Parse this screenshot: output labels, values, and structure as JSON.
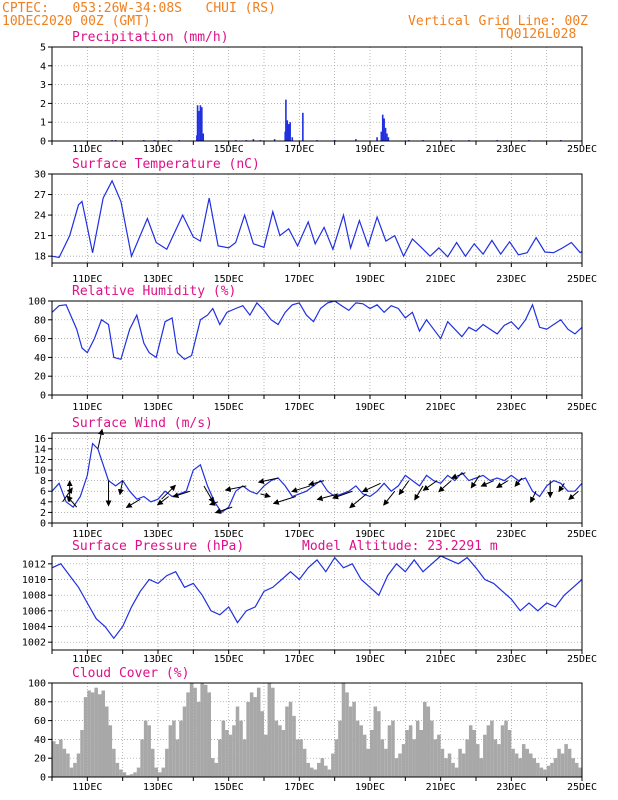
{
  "header": {
    "line1": "CPTEC:   053:26W-34:08S   CHUI (RS)",
    "line2": "10DEC2020 00Z (GMT)",
    "right1": "Vertical Grid Line: 00Z",
    "right2": "TQ0126L028"
  },
  "colors": {
    "header": "#f08020",
    "title": "#e0108a",
    "line": "#2030e0",
    "cloud": "#a8a8a8",
    "grid": "#9a9a9a",
    "arrow": "#000000"
  },
  "chart_data": [
    {
      "id": "precip",
      "type": "bar",
      "title": "Precipitation (mm/h)",
      "categories": [
        "11DEC",
        "13DEC",
        "15DEC",
        "17DEC",
        "19DEC",
        "21DEC",
        "23DEC",
        "25DEC"
      ],
      "xlim": [
        10,
        25
      ],
      "ylim": [
        0,
        5
      ],
      "yticks": [
        "0",
        "1",
        "2",
        "3",
        "4",
        "5"
      ],
      "ytick_values": [
        0,
        1,
        2,
        3,
        4,
        5
      ],
      "x": [
        11.7,
        11.8,
        12.6,
        12.9,
        13.3,
        13.6,
        14.1,
        14.12,
        14.16,
        14.2,
        14.24,
        14.28,
        15.2,
        15.5,
        15.7,
        15.9,
        16.3,
        16.6,
        16.62,
        16.66,
        16.7,
        16.74,
        16.8,
        17.1,
        17.5,
        18.0,
        18.6,
        19.2,
        19.32,
        19.36,
        19.4,
        19.44,
        19.48,
        19.52,
        20.1,
        20.5,
        21.3,
        21.8,
        22.6,
        23.5,
        24.4
      ],
      "values": [
        0.05,
        0.05,
        0.05,
        0.05,
        0.05,
        0.05,
        0.3,
        1.9,
        1.6,
        1.9,
        1.8,
        0.4,
        0.05,
        0.05,
        0.1,
        0.05,
        0.1,
        0.5,
        2.2,
        1.1,
        0.9,
        1.0,
        0.2,
        1.5,
        0.05,
        0.05,
        0.1,
        0.2,
        0.5,
        1.4,
        1.2,
        0.7,
        0.4,
        0.2,
        0.05,
        0.05,
        0.05,
        0.05,
        0.05,
        0.05,
        0.05
      ]
    },
    {
      "id": "temp",
      "type": "line",
      "title": "Surface Temperature (nC)",
      "categories": [
        "11DEC",
        "13DEC",
        "15DEC",
        "17DEC",
        "19DEC",
        "21DEC",
        "23DEC",
        "25DEC"
      ],
      "xlim": [
        10,
        25
      ],
      "ylim": [
        17,
        30
      ],
      "yticks": [
        "18",
        "21",
        "24",
        "27",
        "30"
      ],
      "ytick_values": [
        18,
        21,
        24,
        27,
        30
      ],
      "x": [
        10.0,
        10.2,
        10.5,
        10.75,
        10.85,
        11.15,
        11.45,
        11.7,
        11.95,
        12.25,
        12.7,
        12.95,
        13.25,
        13.7,
        14.0,
        14.2,
        14.45,
        14.7,
        15.0,
        15.2,
        15.45,
        15.7,
        16.0,
        16.25,
        16.45,
        16.7,
        16.95,
        17.25,
        17.45,
        17.7,
        17.95,
        18.25,
        18.45,
        18.7,
        18.95,
        19.2,
        19.45,
        19.7,
        19.95,
        20.2,
        20.45,
        20.7,
        20.95,
        21.2,
        21.45,
        21.7,
        21.95,
        22.2,
        22.45,
        22.7,
        22.95,
        23.2,
        23.45,
        23.7,
        23.95,
        24.2,
        24.45,
        24.7,
        24.95,
        25.0
      ],
      "values": [
        18.0,
        17.8,
        21.0,
        25.5,
        26.0,
        18.5,
        26.5,
        29.0,
        26.0,
        18.0,
        23.5,
        20.0,
        19.0,
        24.0,
        20.8,
        20.2,
        26.5,
        19.5,
        19.2,
        20.0,
        24.0,
        19.8,
        19.3,
        24.5,
        21.0,
        22.0,
        19.5,
        23.0,
        19.8,
        22.2,
        19.0,
        24.0,
        19.2,
        23.2,
        19.5,
        23.7,
        20.2,
        21.0,
        18.0,
        20.5,
        19.3,
        18.0,
        19.2,
        17.9,
        20.0,
        18.0,
        19.8,
        18.3,
        20.3,
        18.3,
        20.1,
        18.2,
        18.5,
        20.7,
        18.6,
        18.5,
        19.2,
        20.0,
        18.5,
        18.7
      ]
    },
    {
      "id": "rh",
      "type": "line",
      "title": "Relative Humidity (%)",
      "categories": [
        "11DEC",
        "13DEC",
        "15DEC",
        "17DEC",
        "19DEC",
        "21DEC",
        "23DEC",
        "25DEC"
      ],
      "xlim": [
        10,
        25
      ],
      "ylim": [
        0,
        100
      ],
      "yticks": [
        "0",
        "20",
        "40",
        "60",
        "80",
        "100"
      ],
      "ytick_values": [
        0,
        20,
        40,
        60,
        80,
        100
      ],
      "x": [
        10.0,
        10.2,
        10.4,
        10.7,
        10.85,
        11.0,
        11.2,
        11.4,
        11.6,
        11.75,
        11.95,
        12.2,
        12.4,
        12.6,
        12.75,
        12.95,
        13.2,
        13.4,
        13.55,
        13.75,
        13.95,
        14.2,
        14.4,
        14.55,
        14.75,
        14.95,
        15.2,
        15.4,
        15.6,
        15.8,
        16.0,
        16.2,
        16.4,
        16.6,
        16.8,
        17.0,
        17.2,
        17.4,
        17.6,
        17.8,
        18.0,
        18.2,
        18.4,
        18.6,
        18.8,
        19.0,
        19.2,
        19.4,
        19.6,
        19.8,
        20.0,
        20.2,
        20.4,
        20.6,
        20.8,
        21.0,
        21.2,
        21.4,
        21.6,
        21.8,
        22.0,
        22.2,
        22.4,
        22.6,
        22.8,
        23.0,
        23.2,
        23.4,
        23.6,
        23.8,
        24.0,
        24.2,
        24.4,
        24.6,
        24.8,
        25.0
      ],
      "values": [
        88,
        95,
        96,
        70,
        50,
        45,
        60,
        80,
        75,
        40,
        38,
        70,
        85,
        55,
        45,
        40,
        78,
        82,
        45,
        38,
        42,
        80,
        85,
        92,
        75,
        88,
        92,
        95,
        85,
        98,
        90,
        80,
        75,
        88,
        96,
        98,
        85,
        78,
        92,
        98,
        100,
        95,
        90,
        98,
        97,
        92,
        96,
        88,
        95,
        92,
        82,
        88,
        68,
        80,
        70,
        60,
        78,
        70,
        62,
        72,
        68,
        75,
        70,
        65,
        74,
        78,
        70,
        80,
        96,
        72,
        70,
        75,
        80,
        70,
        65,
        72
      ]
    },
    {
      "id": "wind",
      "type": "line",
      "title": "Surface Wind (m/s)",
      "categories": [
        "11DEC",
        "13DEC",
        "15DEC",
        "17DEC",
        "19DEC",
        "21DEC",
        "23DEC",
        "25DEC"
      ],
      "xlim": [
        10,
        25
      ],
      "ylim": [
        0,
        17
      ],
      "yticks": [
        "0",
        "2",
        "4",
        "6",
        "8",
        "10",
        "12",
        "14",
        "16"
      ],
      "ytick_values": [
        0,
        2,
        4,
        6,
        8,
        10,
        12,
        14,
        16
      ],
      "x": [
        10.0,
        10.2,
        10.4,
        10.6,
        10.8,
        11.0,
        11.15,
        11.3,
        11.45,
        11.6,
        11.8,
        12.0,
        12.2,
        12.4,
        12.6,
        12.8,
        13.0,
        13.2,
        13.4,
        13.6,
        13.8,
        14.0,
        14.2,
        14.4,
        14.6,
        14.8,
        15.0,
        15.2,
        15.4,
        15.6,
        15.8,
        16.0,
        16.2,
        16.4,
        16.6,
        16.8,
        17.0,
        17.2,
        17.4,
        17.6,
        17.8,
        18.0,
        18.2,
        18.4,
        18.6,
        18.8,
        19.0,
        19.2,
        19.4,
        19.6,
        19.8,
        20.0,
        20.2,
        20.4,
        20.6,
        20.8,
        21.0,
        21.2,
        21.4,
        21.6,
        21.8,
        22.0,
        22.2,
        22.4,
        22.6,
        22.8,
        23.0,
        23.2,
        23.4,
        23.6,
        23.8,
        24.0,
        24.2,
        24.4,
        24.6,
        24.8,
        25.0
      ],
      "values": [
        6,
        7.5,
        4,
        3,
        5,
        9,
        15,
        14,
        11,
        8,
        7,
        8,
        6,
        4.5,
        5,
        4,
        4.5,
        6,
        5,
        5.5,
        6,
        10,
        11,
        7,
        4,
        2,
        3,
        6,
        7,
        6,
        5.5,
        7,
        8,
        8.5,
        7,
        5,
        5.5,
        6,
        7,
        8,
        6,
        5,
        5.5,
        6,
        7,
        5.5,
        5,
        6,
        7.5,
        6,
        7,
        9,
        8,
        7,
        9,
        8,
        7.5,
        9,
        8,
        9.5,
        8,
        8.5,
        9,
        8,
        8.5,
        8,
        9,
        8,
        8.5,
        6,
        5,
        7,
        8,
        7.5,
        6,
        6,
        7.5
      ],
      "vectors": {
        "x": [
          10.3,
          10.5,
          10.7,
          11.3,
          11.6,
          12.0,
          12.5,
          13.1,
          13.3,
          13.9,
          14.3,
          14.7,
          15.1,
          15.5,
          15.9,
          16.4,
          16.9,
          17.3,
          17.7,
          18.1,
          18.5,
          18.9,
          19.3,
          19.7,
          20.1,
          20.5,
          20.9,
          21.3,
          21.7,
          22.1,
          22.5,
          22.9,
          23.3,
          23.7,
          24.1,
          24.5,
          24.9
        ],
        "u": [
          0.7,
          0.0,
          -0.7,
          0.3,
          0.0,
          -0.2,
          -1.0,
          1.0,
          -0.8,
          -1.2,
          0.7,
          -0.6,
          -1.2,
          -1.5,
          0.7,
          -1.4,
          -1.6,
          -1.3,
          -1.1,
          -1.5,
          -1.4,
          -1.2,
          -1.3,
          -0.8,
          -0.7,
          -0.6,
          -1.0,
          -0.9,
          -1.0,
          -0.6,
          -0.9,
          -0.8,
          -0.5,
          -0.4,
          0.0,
          -0.4,
          -0.7
        ],
        "v": [
          1.0,
          1.5,
          0.8,
          1.4,
          -1.8,
          -1.0,
          -0.6,
          1.0,
          -0.6,
          -0.4,
          -1.2,
          -0.2,
          -0.4,
          -0.3,
          -0.2,
          -0.3,
          -0.5,
          -0.4,
          -0.3,
          -0.4,
          -0.5,
          -1.0,
          -0.6,
          -1.0,
          -1.0,
          -1.0,
          -0.7,
          -0.8,
          -0.4,
          -0.9,
          -0.4,
          -0.5,
          -0.6,
          -0.8,
          -1.2,
          -0.6,
          -0.6
        ]
      }
    },
    {
      "id": "pres",
      "type": "line",
      "title": "Surface Pressure (hPa)",
      "annotation": "Model Altitude: 23.2291 m",
      "categories": [
        "11DEC",
        "13DEC",
        "15DEC",
        "17DEC",
        "19DEC",
        "21DEC",
        "23DEC",
        "25DEC"
      ],
      "xlim": [
        10,
        25
      ],
      "ylim": [
        1001,
        1013
      ],
      "yticks": [
        "1002",
        "1004",
        "1006",
        "1008",
        "1010",
        "1012"
      ],
      "ytick_values": [
        1002,
        1004,
        1006,
        1008,
        1010,
        1012
      ],
      "x": [
        10.0,
        10.25,
        10.5,
        10.75,
        11.0,
        11.25,
        11.5,
        11.75,
        12.0,
        12.25,
        12.5,
        12.75,
        13.0,
        13.25,
        13.5,
        13.75,
        14.0,
        14.25,
        14.5,
        14.75,
        15.0,
        15.25,
        15.5,
        15.75,
        16.0,
        16.25,
        16.5,
        16.75,
        17.0,
        17.25,
        17.5,
        17.75,
        18.0,
        18.25,
        18.5,
        18.75,
        19.0,
        19.25,
        19.5,
        19.75,
        20.0,
        20.25,
        20.5,
        20.75,
        21.0,
        21.25,
        21.5,
        21.75,
        22.0,
        22.25,
        22.5,
        22.75,
        23.0,
        23.25,
        23.5,
        23.75,
        24.0,
        24.25,
        24.5,
        24.75,
        25.0
      ],
      "values": [
        1011.5,
        1012.0,
        1010.5,
        1009.0,
        1007.0,
        1005.0,
        1004.0,
        1002.5,
        1004.0,
        1006.5,
        1008.5,
        1010.0,
        1009.5,
        1010.5,
        1011.0,
        1009.0,
        1009.5,
        1008.0,
        1006.0,
        1005.5,
        1006.5,
        1004.5,
        1006.0,
        1006.5,
        1008.5,
        1009.0,
        1010.0,
        1011.0,
        1010.0,
        1011.5,
        1012.5,
        1011.0,
        1012.8,
        1011.5,
        1012.0,
        1010.0,
        1009.0,
        1008.0,
        1010.5,
        1012.0,
        1011.0,
        1012.5,
        1011.0,
        1012.0,
        1013.0,
        1012.5,
        1012.0,
        1012.8,
        1011.5,
        1010.0,
        1009.5,
        1008.5,
        1007.5,
        1006.0,
        1007.0,
        1006.0,
        1007.0,
        1006.5,
        1008.0,
        1009.0,
        1010.0
      ]
    },
    {
      "id": "cloud",
      "type": "bar",
      "title": "Cloud Cover (%)",
      "categories": [
        "11DEC",
        "13DEC",
        "15DEC",
        "17DEC",
        "19DEC",
        "21DEC",
        "23DEC",
        "25DEC"
      ],
      "xlim": [
        10,
        25
      ],
      "ylim": [
        0,
        100
      ],
      "yticks": [
        "0",
        "20",
        "40",
        "60",
        "80",
        "100"
      ],
      "ytick_values": [
        0,
        20,
        40,
        60,
        80,
        100
      ],
      "x": [
        10.05,
        10.15,
        10.25,
        10.35,
        10.45,
        10.55,
        10.65,
        10.75,
        10.85,
        10.95,
        11.05,
        11.15,
        11.25,
        11.35,
        11.45,
        11.55,
        11.65,
        11.75,
        11.85,
        11.95,
        12.05,
        12.15,
        12.25,
        12.35,
        12.45,
        12.55,
        12.65,
        12.75,
        12.85,
        12.95,
        13.05,
        13.15,
        13.25,
        13.35,
        13.45,
        13.55,
        13.65,
        13.75,
        13.85,
        13.95,
        14.05,
        14.15,
        14.25,
        14.35,
        14.45,
        14.55,
        14.65,
        14.75,
        14.85,
        14.95,
        15.05,
        15.15,
        15.25,
        15.35,
        15.45,
        15.55,
        15.65,
        15.75,
        15.85,
        15.95,
        16.05,
        16.15,
        16.25,
        16.35,
        16.45,
        16.55,
        16.65,
        16.75,
        16.85,
        16.95,
        17.05,
        17.15,
        17.25,
        17.35,
        17.45,
        17.55,
        17.65,
        17.75,
        17.85,
        17.95,
        18.05,
        18.15,
        18.25,
        18.35,
        18.45,
        18.55,
        18.65,
        18.75,
        18.85,
        18.95,
        19.05,
        19.15,
        19.25,
        19.35,
        19.45,
        19.55,
        19.65,
        19.75,
        19.85,
        19.95,
        20.05,
        20.15,
        20.25,
        20.35,
        20.45,
        20.55,
        20.65,
        20.75,
        20.85,
        20.95,
        21.05,
        21.15,
        21.25,
        21.35,
        21.45,
        21.55,
        21.65,
        21.75,
        21.85,
        21.95,
        22.05,
        22.15,
        22.25,
        22.35,
        22.45,
        22.55,
        22.65,
        22.75,
        22.85,
        22.95,
        23.05,
        23.15,
        23.25,
        23.35,
        23.45,
        23.55,
        23.65,
        23.75,
        23.85,
        23.95,
        24.05,
        24.15,
        24.25,
        24.35,
        24.45,
        24.55,
        24.65,
        24.75,
        24.85,
        24.95
      ],
      "values": [
        38,
        35,
        40,
        30,
        25,
        10,
        15,
        25,
        50,
        85,
        92,
        90,
        95,
        88,
        92,
        75,
        55,
        30,
        15,
        8,
        5,
        2,
        3,
        5,
        10,
        40,
        60,
        55,
        30,
        10,
        5,
        10,
        30,
        55,
        60,
        40,
        60,
        75,
        90,
        100,
        95,
        80,
        100,
        98,
        90,
        20,
        15,
        40,
        60,
        50,
        45,
        55,
        75,
        60,
        40,
        80,
        90,
        85,
        95,
        70,
        45,
        100,
        95,
        60,
        55,
        50,
        75,
        80,
        65,
        40,
        40,
        30,
        15,
        10,
        8,
        15,
        20,
        12,
        8,
        25,
        40,
        60,
        100,
        90,
        75,
        80,
        60,
        55,
        45,
        30,
        50,
        75,
        70,
        40,
        30,
        55,
        60,
        20,
        25,
        35,
        50,
        55,
        40,
        60,
        50,
        80,
        75,
        60,
        40,
        45,
        30,
        20,
        25,
        15,
        10,
        30,
        25,
        40,
        55,
        50,
        35,
        20,
        45,
        55,
        60,
        40,
        35,
        55,
        60,
        50,
        30,
        25,
        20,
        35,
        30,
        25,
        20,
        15,
        10,
        8,
        12,
        15,
        20,
        30,
        25,
        35,
        30,
        20,
        15,
        10
      ]
    }
  ]
}
